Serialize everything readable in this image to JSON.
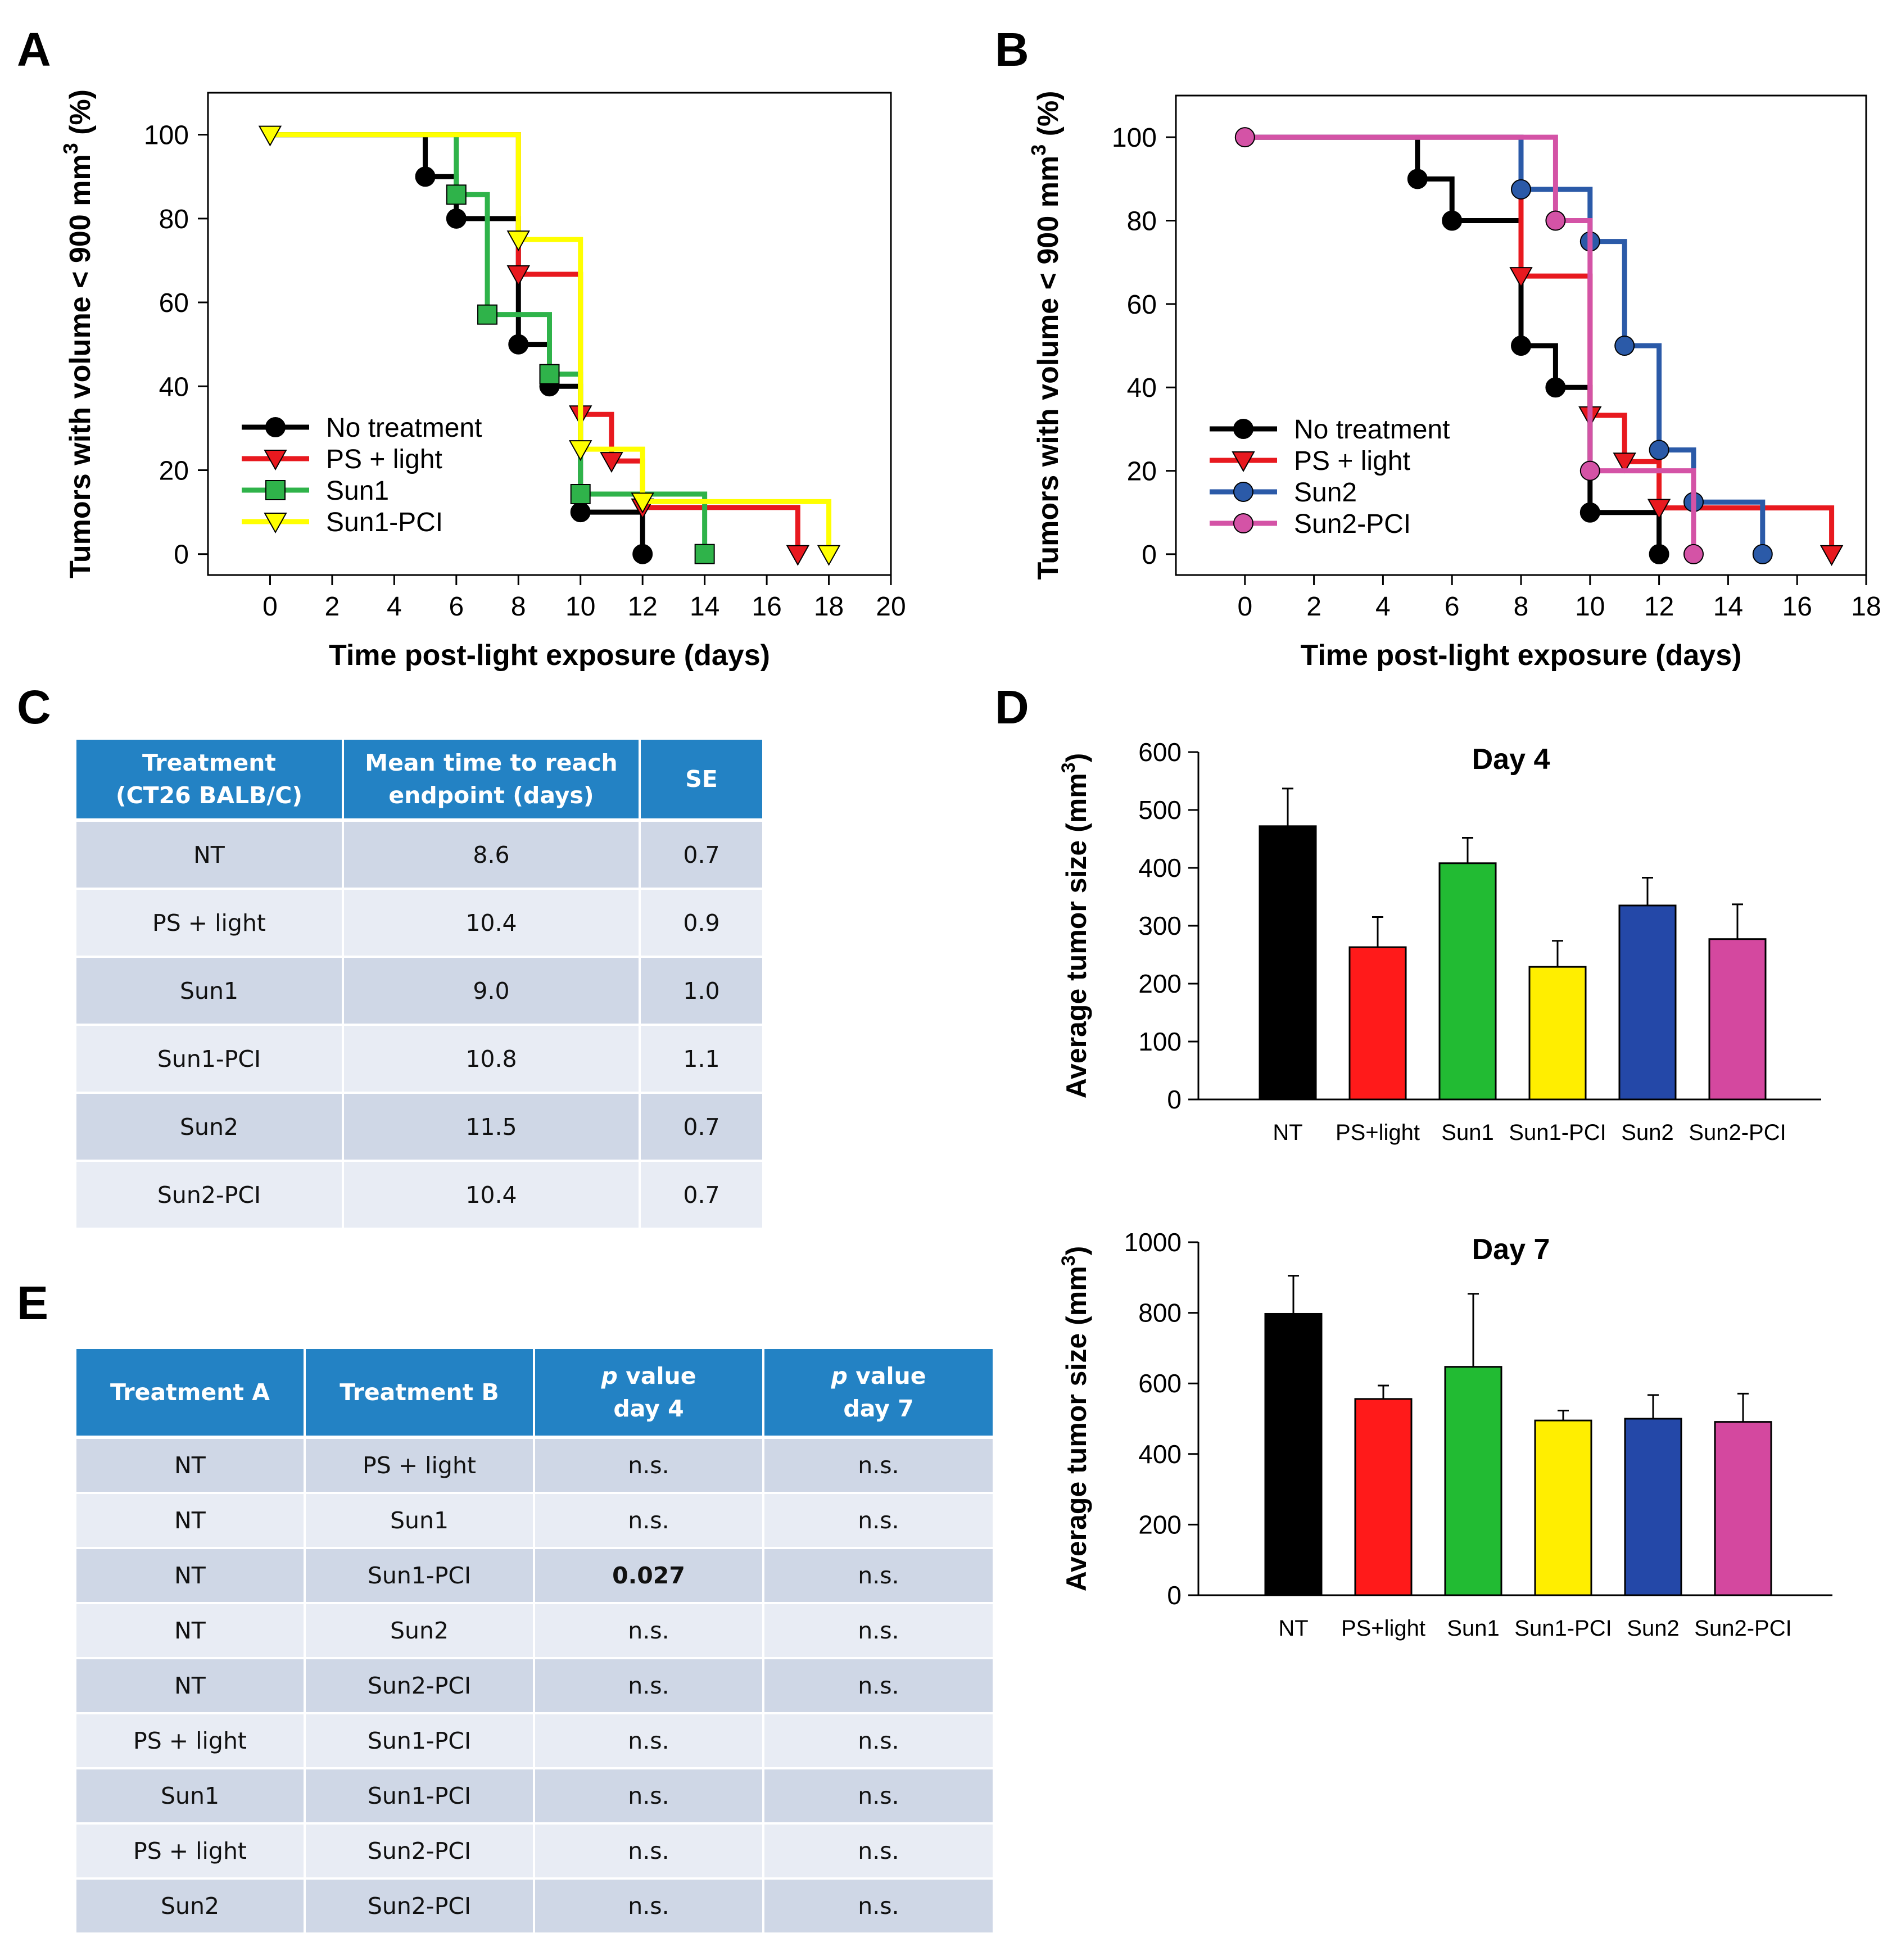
{
  "panel_labels": {
    "A": "A",
    "B": "B",
    "C": "C",
    "D": "D",
    "E": "E"
  },
  "chart_data": [
    {
      "id": "A",
      "type": "line",
      "subtype": "kaplan-meier-step",
      "title": "",
      "xlabel": "Time post-light exposure (days)",
      "ylabel": "Tumors with volume < 900 mm³ (%)",
      "ylabel_parts": [
        "Tumors with volume < 900 mm",
        "3",
        " (%)"
      ],
      "xlim": [
        -2,
        20
      ],
      "ylim": [
        -5,
        110
      ],
      "xticks": [
        0,
        2,
        4,
        6,
        8,
        10,
        12,
        14,
        16,
        18,
        20
      ],
      "yticks": [
        0,
        20,
        40,
        60,
        80,
        100
      ],
      "legend_position": "lower-left",
      "series": [
        {
          "name": "No treatment",
          "color": "#000000",
          "marker": "circle",
          "steps": [
            [
              0,
              100
            ],
            [
              5,
              90
            ],
            [
              6,
              80
            ],
            [
              8,
              50
            ],
            [
              9,
              40
            ],
            [
              10,
              10
            ],
            [
              12,
              0
            ]
          ],
          "markers": [
            [
              5,
              90
            ],
            [
              6,
              80
            ],
            [
              8,
              50
            ],
            [
              9,
              40
            ],
            [
              10,
              10
            ],
            [
              12,
              0
            ]
          ]
        },
        {
          "name": "PS + light",
          "color": "#e8191f",
          "marker": "triangle-down",
          "steps": [
            [
              0,
              100
            ],
            [
              8,
              66.7
            ],
            [
              10,
              33.3
            ],
            [
              11,
              22.2
            ],
            [
              12,
              11.1
            ],
            [
              17,
              0
            ]
          ],
          "markers": [
            [
              8,
              66.7
            ],
            [
              10,
              33.3
            ],
            [
              11,
              22.2
            ],
            [
              12,
              11.1
            ],
            [
              17,
              0
            ]
          ]
        },
        {
          "name": "Sun1",
          "color": "#2fb34a",
          "marker": "square",
          "steps": [
            [
              0,
              100
            ],
            [
              6,
              85.7
            ],
            [
              7,
              57.1
            ],
            [
              9,
              42.9
            ],
            [
              10,
              14.3
            ],
            [
              14,
              0
            ]
          ],
          "markers": [
            [
              6,
              85.7
            ],
            [
              7,
              57.1
            ],
            [
              9,
              42.9
            ],
            [
              10,
              14.3
            ],
            [
              14,
              0
            ]
          ]
        },
        {
          "name": "Sun1-PCI",
          "color": "#ffff00",
          "marker": "triangle-down-open",
          "steps": [
            [
              0,
              100
            ],
            [
              8,
              75
            ],
            [
              10,
              25
            ],
            [
              12,
              12.5
            ],
            [
              18,
              0
            ]
          ],
          "markers": [
            [
              0,
              100
            ],
            [
              8,
              75
            ],
            [
              10,
              25
            ],
            [
              12,
              12.5
            ],
            [
              18,
              0
            ]
          ]
        }
      ],
      "start_marker": [
        0,
        100
      ]
    },
    {
      "id": "B",
      "type": "line",
      "subtype": "kaplan-meier-step",
      "title": "",
      "xlabel": "Time post-light exposure (days)",
      "ylabel": "Tumors with volume < 900 mm³ (%)",
      "ylabel_parts": [
        "Tumors with volume < 900 mm",
        "3",
        " (%)"
      ],
      "xlim": [
        -2,
        18
      ],
      "ylim": [
        -5,
        110
      ],
      "xticks": [
        0,
        2,
        4,
        6,
        8,
        10,
        12,
        14,
        16,
        18
      ],
      "yticks": [
        0,
        20,
        40,
        60,
        80,
        100
      ],
      "legend_position": "lower-left",
      "series": [
        {
          "name": "No treatment",
          "color": "#000000",
          "marker": "circle",
          "steps": [
            [
              0,
              100
            ],
            [
              5,
              90
            ],
            [
              6,
              80
            ],
            [
              8,
              50
            ],
            [
              9,
              40
            ],
            [
              10,
              10
            ],
            [
              12,
              0
            ]
          ],
          "markers": [
            [
              5,
              90
            ],
            [
              6,
              80
            ],
            [
              8,
              50
            ],
            [
              9,
              40
            ],
            [
              10,
              10
            ],
            [
              12,
              0
            ]
          ]
        },
        {
          "name": "PS + light",
          "color": "#e8191f",
          "marker": "triangle-down",
          "steps": [
            [
              0,
              100
            ],
            [
              8,
              66.7
            ],
            [
              10,
              33.3
            ],
            [
              11,
              22.2
            ],
            [
              12,
              11.1
            ],
            [
              17,
              0
            ]
          ],
          "markers": [
            [
              8,
              66.7
            ],
            [
              10,
              33.3
            ],
            [
              11,
              22.2
            ],
            [
              12,
              11.1
            ],
            [
              17,
              0
            ]
          ]
        },
        {
          "name": "Sun2",
          "color": "#2b5aa8",
          "marker": "circle",
          "steps": [
            [
              0,
              100
            ],
            [
              8,
              87.5
            ],
            [
              10,
              75
            ],
            [
              11,
              50
            ],
            [
              12,
              25
            ],
            [
              13,
              12.5
            ],
            [
              15,
              0
            ]
          ],
          "markers": [
            [
              8,
              87.5
            ],
            [
              10,
              75
            ],
            [
              11,
              50
            ],
            [
              12,
              25
            ],
            [
              13,
              12.5
            ],
            [
              15,
              0
            ]
          ]
        },
        {
          "name": "Sun2-PCI",
          "color": "#d453a6",
          "marker": "circle",
          "steps": [
            [
              0,
              100
            ],
            [
              9,
              80
            ],
            [
              10,
              20
            ],
            [
              13,
              0
            ]
          ],
          "markers": [
            [
              0,
              100
            ],
            [
              9,
              80
            ],
            [
              10,
              20
            ],
            [
              13,
              0
            ]
          ]
        }
      ]
    },
    {
      "id": "D-day4",
      "type": "bar",
      "title": "Day 4",
      "xlabel": "",
      "ylabel": "Average tumor size (mm³)",
      "ylabel_parts": [
        "Average tumor size (mm",
        "3",
        ")"
      ],
      "categories": [
        "NT",
        "PS+light",
        "Sun1",
        "Sun1-PCI",
        "Sun2",
        "Sun2-PCI"
      ],
      "values": [
        472,
        263,
        408,
        229,
        335,
        277
      ],
      "errors": [
        65,
        52,
        44,
        45,
        48,
        60
      ],
      "colors": [
        "#000000",
        "#ff1a1a",
        "#22bb33",
        "#ffee00",
        "#2448a8",
        "#d4489f"
      ],
      "ylim": [
        0,
        600
      ],
      "yticks": [
        0,
        100,
        200,
        300,
        400,
        500,
        600
      ]
    },
    {
      "id": "D-day7",
      "type": "bar",
      "title": "Day 7",
      "xlabel": "",
      "ylabel": "Average tumor size (mm³)",
      "ylabel_parts": [
        "Average tumor size (mm",
        "3",
        ")"
      ],
      "categories": [
        "NT",
        "PS+light",
        "Sun1",
        "Sun1-PCI",
        "Sun2",
        "Sun2-PCI"
      ],
      "values": [
        797,
        556,
        647,
        495,
        500,
        491
      ],
      "errors": [
        108,
        38,
        207,
        28,
        67,
        80
      ],
      "colors": [
        "#000000",
        "#ff1a1a",
        "#22bb33",
        "#ffee00",
        "#2448a8",
        "#d4489f"
      ],
      "ylim": [
        0,
        1000
      ],
      "yticks": [
        0,
        200,
        400,
        600,
        800,
        1000
      ]
    }
  ],
  "table_c": {
    "headers": [
      [
        "Treatment",
        "(CT26 BALB/C)"
      ],
      [
        "Mean time to reach",
        "endpoint (days)"
      ],
      [
        "SE"
      ]
    ],
    "rows": [
      [
        "NT",
        "8.6",
        "0.7"
      ],
      [
        "PS + light",
        "10.4",
        "0.9"
      ],
      [
        "Sun1",
        "9.0",
        "1.0"
      ],
      [
        "Sun1-PCI",
        "10.8",
        "1.1"
      ],
      [
        "Sun2",
        "11.5",
        "0.7"
      ],
      [
        "Sun2-PCI",
        "10.4",
        "0.7"
      ]
    ]
  },
  "table_e": {
    "headers": [
      [
        "Treatment A"
      ],
      [
        "Treatment B"
      ],
      [
        "p",
        "value",
        "day 4"
      ],
      [
        "p",
        "value",
        "day 7"
      ]
    ],
    "rows": [
      [
        "NT",
        "PS + light",
        "n.s.",
        "n.s."
      ],
      [
        "NT",
        "Sun1",
        "n.s.",
        "n.s."
      ],
      [
        "NT",
        "Sun1-PCI",
        "0.027",
        "n.s."
      ],
      [
        "NT",
        "Sun2",
        "n.s.",
        "n.s."
      ],
      [
        "NT",
        "Sun2-PCI",
        "n.s.",
        "n.s."
      ],
      [
        "PS + light",
        "Sun1-PCI",
        "n.s.",
        "n.s."
      ],
      [
        "Sun1",
        "Sun1-PCI",
        "n.s.",
        "n.s."
      ],
      [
        "PS + light",
        "Sun2-PCI",
        "n.s.",
        "n.s."
      ],
      [
        "Sun2",
        "Sun2-PCI",
        "n.s.",
        "n.s."
      ]
    ],
    "bold_cells": [
      [
        2,
        2
      ]
    ]
  }
}
